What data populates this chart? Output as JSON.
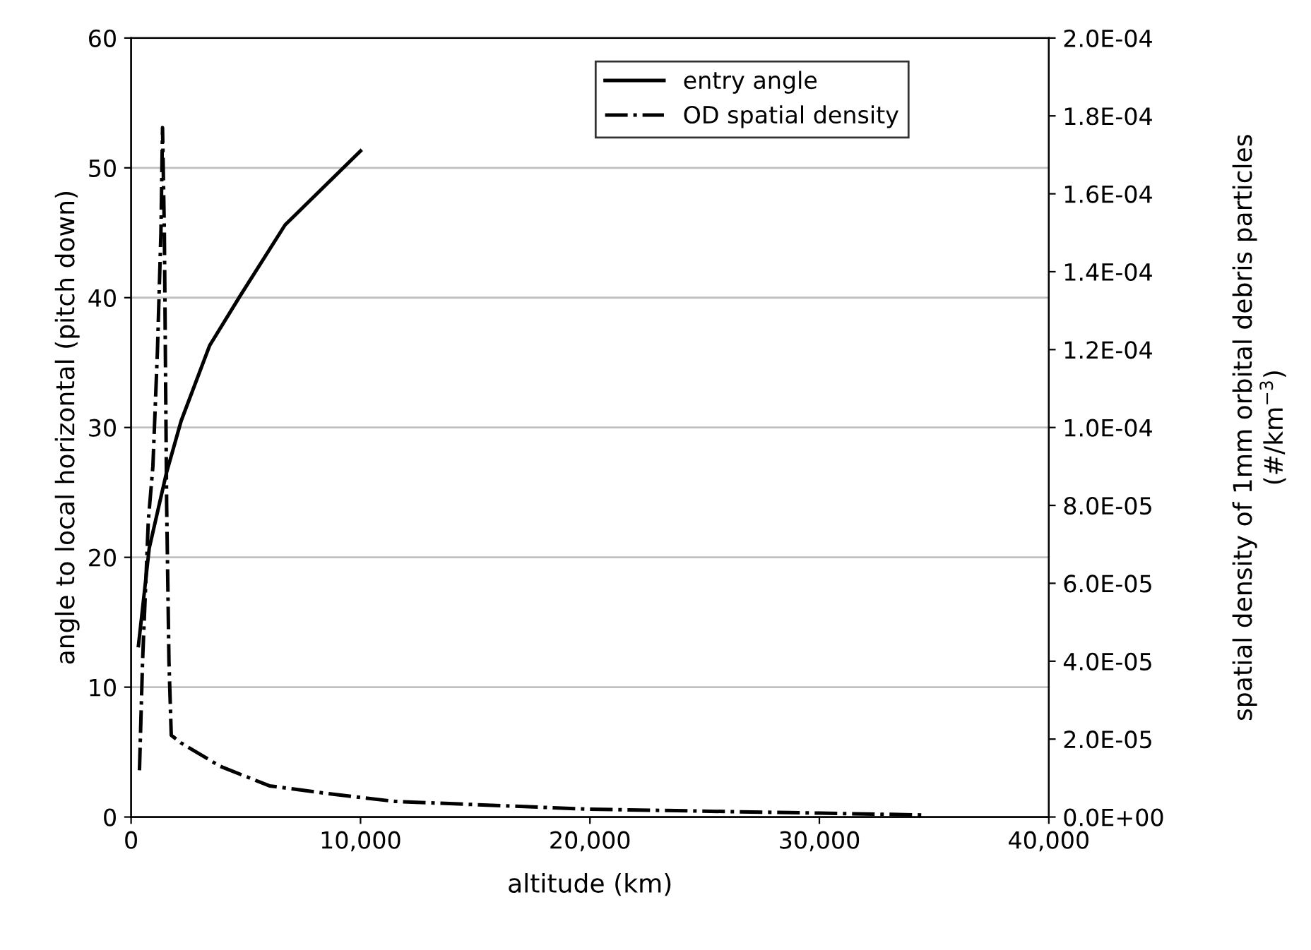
{
  "chart_data": {
    "type": "line",
    "xlabel": "altitude (km)",
    "ylabel": "angle to local horizontal (pitch down)",
    "y2label": "spatial density of 1mm orbital debris particles\n(#/km$^{−3}$)",
    "xlim": [
      0,
      40000
    ],
    "xticks": [
      {
        "value": 0,
        "label": "0"
      },
      {
        "value": 10000,
        "label": "10,000"
      },
      {
        "value": 20000,
        "label": "20,000"
      },
      {
        "value": 30000,
        "label": "30,000"
      },
      {
        "value": 40000,
        "label": "40,000"
      }
    ],
    "ylim": [
      0,
      60
    ],
    "yticks": [
      0,
      10,
      20,
      30,
      40,
      50,
      60
    ],
    "y2lim": [
      0,
      0.0002
    ],
    "y2ticks": [
      {
        "value": 0,
        "label": "0.0E+00"
      },
      {
        "value": 2e-05,
        "label": "2.0E-05"
      },
      {
        "value": 4e-05,
        "label": "4.0E-05"
      },
      {
        "value": 6e-05,
        "label": "6.0E-05"
      },
      {
        "value": 8e-05,
        "label": "8.0E-05"
      },
      {
        "value": 0.0001,
        "label": "1.0E-04"
      },
      {
        "value": 0.00012,
        "label": "1.2E-04"
      },
      {
        "value": 0.00014,
        "label": "1.4E-04"
      },
      {
        "value": 0.00016,
        "label": "1.6E-04"
      },
      {
        "value": 0.00018,
        "label": "1.8E-04"
      },
      {
        "value": 0.0002,
        "label": "2.0E-04"
      }
    ],
    "grid": "y",
    "legend": "top right",
    "marker": "none",
    "series": [
      {
        "name": "entry angle",
        "color": "#000000",
        "line_style": "solid",
        "x": [
          320,
          790,
          1540,
          2180,
          3420,
          4740,
          6710,
          10000
        ],
        "values": [
          13.2,
          20.7,
          26.5,
          30.5,
          36.3,
          40.1,
          45.6,
          51.3
        ]
      },
      {
        "name": "OD spatial density",
        "color": "#000000",
        "line_style": "dashdot",
        "axis": "y2",
        "x": [
          365,
          500,
          750,
          950,
          1150,
          1300,
          1370,
          1450,
          1550,
          1650,
          1750,
          2180,
          3890,
          6030,
          8590,
          11500,
          20000,
          30000,
          34600
        ],
        "values": [
          1.2e-05,
          4e-05,
          7.6e-05,
          9e-05,
          0.00012,
          0.00015,
          0.000177,
          0.00015,
          8e-05,
          4e-05,
          2.1e-05,
          1.9e-05,
          1.3e-05,
          8e-06,
          6e-06,
          4e-06,
          2e-06,
          1e-06,
          5e-07
        ]
      }
    ]
  }
}
